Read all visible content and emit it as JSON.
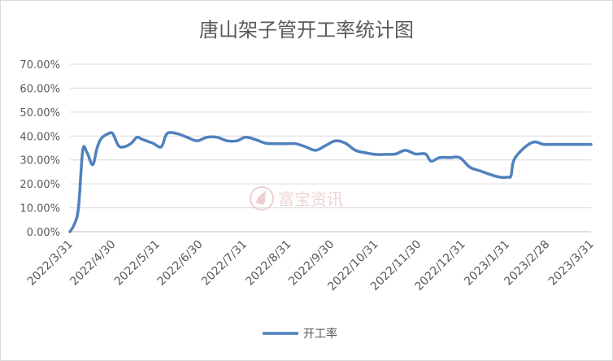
{
  "chart_data": {
    "type": "line",
    "title": "唐山架子管开工率统计图",
    "ylim": [
      0,
      0.7
    ],
    "y_ticks": [
      "0.00%",
      "10.00%",
      "20.00%",
      "30.00%",
      "40.00%",
      "50.00%",
      "60.00%",
      "70.00%"
    ],
    "x_ticks": [
      "2022/3/31",
      "2022/4/30",
      "2022/5/31",
      "2022/6/30",
      "2022/7/31",
      "2022/8/31",
      "2022/9/30",
      "2022/10/31",
      "2022/11/30",
      "2022/12/31",
      "2023/1/31",
      "2023/2/28",
      "2023/3/31"
    ],
    "grid": true,
    "legend_position": "bottom",
    "series": [
      {
        "name": "开工率",
        "color": "#4f81bd",
        "points": [
          [
            "2022/3/31",
            0.0
          ],
          [
            "2022/4/3",
            0.03
          ],
          [
            "2022/4/6",
            0.1
          ],
          [
            "2022/4/9",
            0.34
          ],
          [
            "2022/4/12",
            0.33
          ],
          [
            "2022/4/16",
            0.28
          ],
          [
            "2022/4/19",
            0.35
          ],
          [
            "2022/4/22",
            0.39
          ],
          [
            "2022/4/27",
            0.41
          ],
          [
            "2022/4/30",
            0.41
          ],
          [
            "2022/5/4",
            0.36
          ],
          [
            "2022/5/8",
            0.355
          ],
          [
            "2022/5/13",
            0.37
          ],
          [
            "2022/5/17",
            0.395
          ],
          [
            "2022/5/21",
            0.385
          ],
          [
            "2022/5/28",
            0.37
          ],
          [
            "2022/6/3",
            0.355
          ],
          [
            "2022/6/7",
            0.41
          ],
          [
            "2022/6/14",
            0.41
          ],
          [
            "2022/6/21",
            0.395
          ],
          [
            "2022/6/28",
            0.38
          ],
          [
            "2022/7/5",
            0.395
          ],
          [
            "2022/7/12",
            0.395
          ],
          [
            "2022/7/19",
            0.38
          ],
          [
            "2022/7/26",
            0.38
          ],
          [
            "2022/8/1",
            0.395
          ],
          [
            "2022/8/8",
            0.385
          ],
          [
            "2022/8/15",
            0.37
          ],
          [
            "2022/8/22",
            0.368
          ],
          [
            "2022/8/29",
            0.368
          ],
          [
            "2022/9/5",
            0.368
          ],
          [
            "2022/9/12",
            0.355
          ],
          [
            "2022/9/19",
            0.34
          ],
          [
            "2022/9/26",
            0.36
          ],
          [
            "2022/10/3",
            0.38
          ],
          [
            "2022/10/10",
            0.37
          ],
          [
            "2022/10/17",
            0.34
          ],
          [
            "2022/10/24",
            0.33
          ],
          [
            "2022/10/31",
            0.323
          ],
          [
            "2022/11/7",
            0.323
          ],
          [
            "2022/11/14",
            0.325
          ],
          [
            "2022/11/21",
            0.34
          ],
          [
            "2022/11/28",
            0.325
          ],
          [
            "2022/12/5",
            0.325
          ],
          [
            "2022/12/9",
            0.295
          ],
          [
            "2022/12/15",
            0.31
          ],
          [
            "2022/12/22",
            0.31
          ],
          [
            "2022/12/29",
            0.31
          ],
          [
            "2023/1/5",
            0.27
          ],
          [
            "2023/1/12",
            0.255
          ],
          [
            "2023/1/19",
            0.24
          ],
          [
            "2023/1/26",
            0.228
          ],
          [
            "2023/2/1",
            0.228
          ],
          [
            "2023/2/3",
            0.235
          ],
          [
            "2023/2/5",
            0.3
          ],
          [
            "2023/2/12",
            0.35
          ],
          [
            "2023/2/19",
            0.375
          ],
          [
            "2023/2/26",
            0.365
          ],
          [
            "2023/3/5",
            0.365
          ],
          [
            "2023/3/12",
            0.365
          ],
          [
            "2023/3/19",
            0.365
          ],
          [
            "2023/3/26",
            0.365
          ],
          [
            "2023/3/31",
            0.365
          ]
        ]
      }
    ]
  },
  "watermark": "富宝资讯"
}
